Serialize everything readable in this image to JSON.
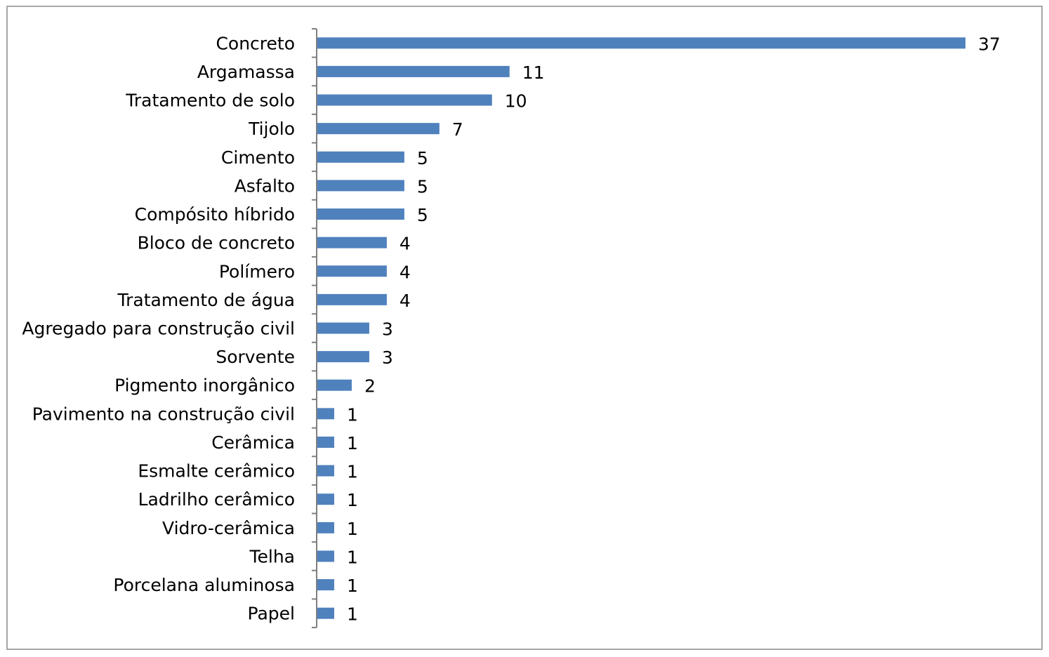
{
  "chart_data": {
    "type": "bar",
    "orientation": "horizontal",
    "title": "",
    "xlabel": "",
    "ylabel": "",
    "categories": [
      "Concreto",
      "Argamassa",
      "Tratamento de solo",
      "Tijolo",
      "Cimento",
      "Asfalto",
      "Compósito híbrido",
      "Bloco de concreto",
      "Polímero",
      "Tratamento de água",
      "Agregado para construção civil",
      "Sorvente",
      "Pigmento inorgânico",
      "Pavimento na construção civil",
      "Cerâmica",
      "Esmalte cerâmico",
      "Ladrilho cerâmico",
      "Vidro-cerâmica",
      "Telha",
      "Porcelana aluminosa",
      "Papel"
    ],
    "values": [
      37,
      11,
      10,
      7,
      5,
      5,
      5,
      4,
      4,
      4,
      3,
      3,
      2,
      1,
      1,
      1,
      1,
      1,
      1,
      1,
      1
    ],
    "xlim": [
      0,
      37
    ],
    "data_labels": true,
    "grid": false,
    "legend": "none",
    "bar_color": "#4f81bd",
    "axis_color": "#808080"
  }
}
